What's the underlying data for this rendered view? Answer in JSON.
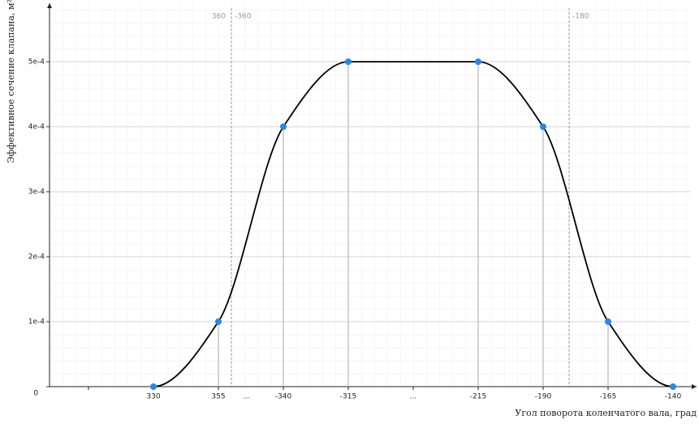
{
  "chart_data": {
    "type": "line",
    "x_title": "Угол поворота коленчатого вала, град",
    "y_title": "Эффективное сечение клапана, м²",
    "categories": [
      "330",
      "355",
      "-340",
      "-315",
      "-215",
      "-190",
      "-165",
      "-140"
    ],
    "series": [
      {
        "color": "#000000",
        "point_color": "#2d86e6",
        "values": [
          0,
          0.0001,
          0.0004,
          0.0005,
          0.0005,
          0.0004,
          0.0001,
          0
        ]
      }
    ],
    "break_labels": [
      "...",
      "..."
    ],
    "markers": [
      {
        "label": "360"
      },
      {
        "label": "-360"
      },
      {
        "label": "-180"
      }
    ],
    "ylim": [
      0,
      0.00059
    ],
    "yticks": [
      0,
      {
        "value": 0.0001,
        "label": "1e-4"
      },
      {
        "value": 0.0002,
        "label": "2e-4"
      },
      {
        "value": 0.0003,
        "label": "3e-4"
      },
      {
        "value": 0.0004,
        "label": "4e-4"
      },
      {
        "value": 0.0005,
        "label": "5e-4"
      }
    ],
    "grid": true
  }
}
